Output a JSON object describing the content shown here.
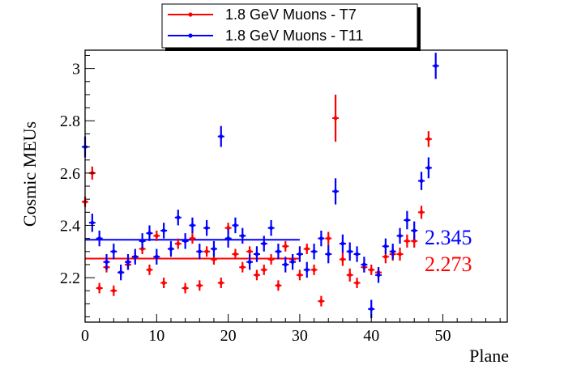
{
  "chart_data": {
    "type": "scatter",
    "xlabel": "Plane",
    "ylabel": "Cosmic MEUs",
    "xlim": [
      0,
      59
    ],
    "ylim": [
      2.03,
      3.07
    ],
    "x_ticks": [
      0,
      10,
      20,
      30,
      40,
      50
    ],
    "y_ticks": [
      2.2,
      2.4,
      2.6,
      2.8,
      3.0
    ],
    "y_tick_labels": [
      "2.2",
      "2.4",
      "2.6",
      "2.8",
      "3"
    ],
    "grid": false,
    "legend_position": "top-center",
    "series": [
      {
        "name": "1.8 GeV Muons - T7",
        "color": "#ff0000",
        "x": [
          0,
          1,
          2,
          3,
          4,
          5,
          6,
          7,
          8,
          9,
          10,
          11,
          12,
          13,
          14,
          15,
          16,
          17,
          18,
          19,
          20,
          21,
          22,
          23,
          24,
          25,
          26,
          27,
          28,
          29,
          30,
          31,
          32,
          33,
          34,
          35,
          36,
          37,
          38,
          39,
          40,
          41,
          42,
          43,
          44,
          45,
          46,
          47,
          48
        ],
        "y": [
          2.49,
          2.6,
          2.16,
          2.24,
          2.15,
          2.22,
          2.25,
          2.28,
          2.31,
          2.23,
          2.36,
          2.18,
          2.31,
          2.33,
          2.16,
          2.35,
          2.17,
          2.3,
          2.27,
          2.18,
          2.39,
          2.29,
          2.24,
          2.3,
          2.21,
          2.23,
          2.27,
          2.17,
          2.32,
          2.27,
          2.21,
          2.31,
          2.23,
          2.11,
          2.35,
          2.81,
          2.27,
          2.21,
          2.18,
          2.24,
          2.23,
          2.22,
          2.28,
          2.29,
          2.29,
          2.34,
          2.34,
          2.45,
          2.73
        ],
        "yerr": [
          0.02,
          0.025,
          0.02,
          0.02,
          0.02,
          0.02,
          0.02,
          0.02,
          0.02,
          0.02,
          0.02,
          0.02,
          0.02,
          0.02,
          0.02,
          0.02,
          0.02,
          0.02,
          0.02,
          0.02,
          0.02,
          0.02,
          0.02,
          0.02,
          0.02,
          0.02,
          0.02,
          0.02,
          0.02,
          0.02,
          0.02,
          0.02,
          0.02,
          0.02,
          0.025,
          0.09,
          0.025,
          0.025,
          0.02,
          0.02,
          0.02,
          0.02,
          0.025,
          0.025,
          0.025,
          0.025,
          0.025,
          0.025,
          0.03
        ],
        "fit_value": 2.273,
        "fit_range": [
          0,
          30
        ],
        "annotation": "2.273"
      },
      {
        "name": "1.8 GeV Muons - T11",
        "color": "#0000ff",
        "x": [
          0,
          1,
          2,
          3,
          4,
          5,
          6,
          7,
          8,
          9,
          10,
          11,
          12,
          13,
          14,
          15,
          16,
          17,
          18,
          19,
          20,
          21,
          22,
          23,
          24,
          25,
          26,
          27,
          28,
          29,
          30,
          31,
          32,
          33,
          34,
          35,
          36,
          37,
          38,
          39,
          40,
          41,
          42,
          43,
          44,
          45,
          46,
          47,
          48,
          49
        ],
        "y": [
          2.7,
          2.41,
          2.35,
          2.26,
          2.3,
          2.22,
          2.26,
          2.28,
          2.34,
          2.37,
          2.28,
          2.38,
          2.31,
          2.43,
          2.34,
          2.4,
          2.3,
          2.39,
          2.31,
          2.74,
          2.35,
          2.4,
          2.36,
          2.26,
          2.29,
          2.33,
          2.39,
          2.3,
          2.25,
          2.26,
          2.29,
          2.23,
          2.3,
          2.35,
          2.29,
          2.53,
          2.33,
          2.3,
          2.29,
          2.25,
          2.08,
          2.21,
          2.32,
          2.3,
          2.36,
          2.42,
          2.38,
          2.57,
          2.62,
          3.01
        ],
        "yerr": [
          0.04,
          0.035,
          0.03,
          0.03,
          0.03,
          0.03,
          0.03,
          0.03,
          0.03,
          0.03,
          0.03,
          0.03,
          0.03,
          0.03,
          0.03,
          0.03,
          0.03,
          0.03,
          0.03,
          0.04,
          0.035,
          0.03,
          0.03,
          0.03,
          0.03,
          0.03,
          0.03,
          0.03,
          0.03,
          0.03,
          0.03,
          0.03,
          0.03,
          0.03,
          0.035,
          0.05,
          0.035,
          0.035,
          0.03,
          0.03,
          0.035,
          0.03,
          0.03,
          0.03,
          0.03,
          0.035,
          0.035,
          0.035,
          0.04,
          0.05
        ],
        "fit_value": 2.345,
        "fit_range": [
          0,
          30
        ],
        "annotation": "2.345"
      }
    ]
  }
}
